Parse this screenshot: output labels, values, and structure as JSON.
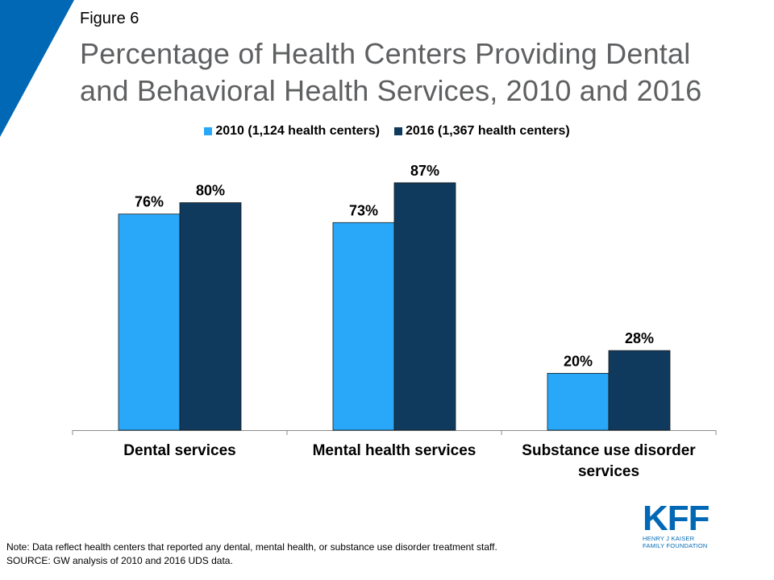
{
  "figure_label": "Figure 6",
  "title_lines": [
    "Percentage of Health Centers Providing Dental",
    "and Behavioral Health Services, 2010 and 2016"
  ],
  "colors": {
    "series_2010": "#29a8f9",
    "series_2016": "#0f3a5e",
    "corner_accent": "#0068b4",
    "title": "#5f6062"
  },
  "chart_data": {
    "type": "bar",
    "categories": [
      [
        "Dental services"
      ],
      [
        "Mental health services"
      ],
      [
        "Substance use disorder",
        "services"
      ]
    ],
    "series": [
      {
        "name": "2010 (1,124 health centers)",
        "values": [
          76,
          73,
          20
        ],
        "labels": [
          "76%",
          "73%",
          "20%"
        ]
      },
      {
        "name": "2016 (1,367 health centers)",
        "values": [
          80,
          87,
          28
        ],
        "labels": [
          "80%",
          "87%",
          "28%"
        ]
      }
    ],
    "ylim": [
      0,
      100
    ],
    "grid": false,
    "legend_position": "top-center"
  },
  "notes": [
    "Note: Data reflect health centers that reported any dental, mental health, or substance use disorder treatment staff.",
    "SOURCE: GW analysis of 2010 and 2016 UDS data."
  ],
  "logo": {
    "mark": "KFF",
    "sub_lines": [
      "HENRY J KAISER",
      "FAMILY FOUNDATION"
    ]
  }
}
